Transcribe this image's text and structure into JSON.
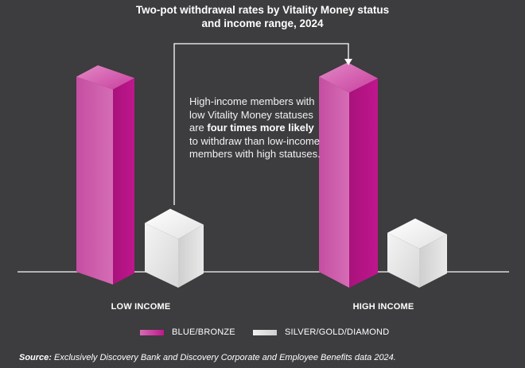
{
  "chart_data": {
    "type": "bar",
    "title": "Two-pot withdrawal rates by Vitality Money status and income range, 2024",
    "title_lines": [
      "Two-pot withdrawal rates by Vitality Money status",
      "and income range, 2024"
    ],
    "categories": [
      "LOW INCOME",
      "HIGH INCOME"
    ],
    "series": [
      {
        "name": "BLUE/BRONZE",
        "color": "#c0168d",
        "values": [
          4.0,
          4.0
        ]
      },
      {
        "name": "SILVER/GOLD/DIAMOND",
        "color": "#e6e6e6",
        "values": [
          1.0,
          0.8
        ]
      }
    ],
    "value_axis": "relative (no printed values)",
    "xlabel": "",
    "ylabel": "",
    "ylim": [
      0,
      4.4
    ],
    "grid": false,
    "legend": "bottom-center",
    "annotation": {
      "parts": [
        {
          "text": "High-income members with low Vitality Money statuses are ",
          "bold": false
        },
        {
          "text": "four times more likely",
          "bold": true
        },
        {
          "text": " to withdraw than low-income members with high statuses.",
          "bold": false
        }
      ]
    }
  },
  "source": {
    "label": "Source:",
    "text": " Exclusively Discovery Bank and Discovery Corporate and Employee Benefits data 2024."
  },
  "colors": {
    "background": "#3d3c3e",
    "pink_front": "#c0168d",
    "white_front": "#e6e6e6"
  }
}
